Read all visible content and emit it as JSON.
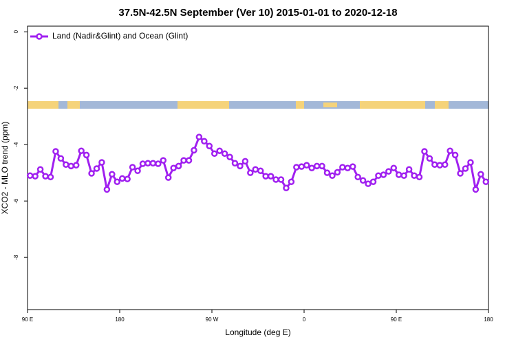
{
  "chart_data": {
    "type": "line",
    "title": "37.5N-42.5N September (Ver 10)   2015-01-01 to 2020-12-18",
    "xlabel": "Longitude (deg E)",
    "ylabel": "XCO2 - MLO trend (ppm)",
    "legend": "top-left",
    "xlim": [
      90,
      540
    ],
    "ylim": [
      -9.85,
      0.2
    ],
    "xticks": [
      {
        "value": 90,
        "label": "90 E"
      },
      {
        "value": 180,
        "label": "180"
      },
      {
        "value": 270,
        "label": "90 W"
      },
      {
        "value": 360,
        "label": "0"
      },
      {
        "value": 450,
        "label": "90 E"
      },
      {
        "value": 540,
        "label": "180"
      }
    ],
    "yticks": [
      0,
      -2,
      -4,
      -6,
      -8
    ],
    "x": [
      92.5,
      97.5,
      102.5,
      107.5,
      112.5,
      117.5,
      122.5,
      127.5,
      132.5,
      137.5,
      142.5,
      147.5,
      152.5,
      157.5,
      162.5,
      167.5,
      172.5,
      177.5,
      182.5,
      187.5,
      192.5,
      197.5,
      202.5,
      207.5,
      212.5,
      217.5,
      222.5,
      227.5,
      232.5,
      237.5,
      242.5,
      247.5,
      252.5,
      257.5,
      262.5,
      267.5,
      272.5,
      277.5,
      282.5,
      287.5,
      292.5,
      297.5,
      302.5,
      307.5,
      312.5,
      317.5,
      322.5,
      327.5,
      332.5,
      337.5,
      342.5,
      347.5,
      352.5,
      357.5,
      362.5,
      367.5,
      372.5,
      377.5,
      382.5,
      387.5,
      392.5,
      397.5,
      402.5,
      407.5,
      412.5,
      417.5,
      422.5,
      427.5,
      432.5,
      437.5,
      442.5,
      447.5,
      452.5,
      457.5,
      462.5,
      467.5,
      472.5,
      477.5,
      482.5,
      487.5,
      492.5,
      497.5,
      502.5,
      507.5,
      512.5,
      517.5,
      522.5,
      527.5,
      532.5,
      537.5
    ],
    "series": [
      {
        "name": "Land (Nadir&Glint) and Ocean (Glint)",
        "color": "#a020f0",
        "values": [
          -5.1,
          -5.12,
          -4.88,
          -5.12,
          -5.15,
          -4.24,
          -4.49,
          -4.71,
          -4.76,
          -4.73,
          -4.22,
          -4.37,
          -5.02,
          -4.85,
          -4.63,
          -5.59,
          -5.05,
          -5.32,
          -5.2,
          -5.22,
          -4.8,
          -4.93,
          -4.68,
          -4.66,
          -4.66,
          -4.68,
          -4.56,
          -5.17,
          -4.83,
          -4.76,
          -4.56,
          -4.56,
          -4.2,
          -3.73,
          -3.88,
          -4.05,
          -4.32,
          -4.22,
          -4.32,
          -4.44,
          -4.66,
          -4.76,
          -4.59,
          -5.0,
          -4.88,
          -4.93,
          -5.12,
          -5.12,
          -5.24,
          -5.24,
          -5.54,
          -5.32,
          -4.8,
          -4.78,
          -4.73,
          -4.83,
          -4.76,
          -4.76,
          -5.0,
          -5.1,
          -4.98,
          -4.8,
          -4.83,
          -4.78,
          -5.15,
          -5.27,
          -5.39,
          -5.32,
          -5.1,
          -5.07,
          -4.95,
          -4.83,
          -5.07,
          -5.1,
          -4.88,
          -5.1,
          -5.15,
          -4.24,
          -4.49,
          -4.71,
          -4.73,
          -4.71,
          -4.22,
          -4.37,
          -5.02,
          -4.85,
          -4.63,
          -5.59,
          -5.05,
          -5.32
        ]
      }
    ]
  }
}
